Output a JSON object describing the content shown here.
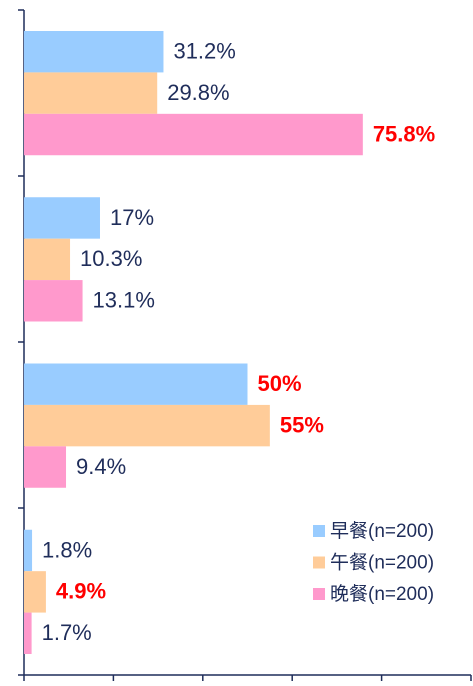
{
  "chart_data": {
    "type": "bar",
    "orientation": "horizontal",
    "categories": [
      null,
      null,
      null,
      null
    ],
    "xlim": [
      0,
      100
    ],
    "xticks": [
      0,
      20,
      40,
      60,
      80,
      100
    ],
    "legend": "lower right",
    "highlight_color": "#ff0000",
    "series": [
      {
        "name": "早餐(n=200)",
        "color": "#99ccff",
        "values": [
          31.2,
          17,
          50,
          1.8
        ],
        "value_labels": [
          "31.2%",
          "17%",
          "50%",
          "1.8%"
        ],
        "highlight": [
          false,
          false,
          true,
          false
        ]
      },
      {
        "name": "午餐(n=200)",
        "color": "#ffcc99",
        "values": [
          29.8,
          10.3,
          55,
          4.9
        ],
        "value_labels": [
          "29.8%",
          "10.3%",
          "55%",
          "4.9%"
        ],
        "highlight": [
          false,
          false,
          true,
          true
        ]
      },
      {
        "name": "晚餐(n=200)",
        "color": "#ff99cc",
        "values": [
          75.8,
          13.1,
          9.4,
          1.7
        ],
        "value_labels": [
          "75.8%",
          "13.1%",
          "9.4%",
          "1.7%"
        ],
        "highlight": [
          true,
          false,
          false,
          false
        ]
      }
    ]
  }
}
